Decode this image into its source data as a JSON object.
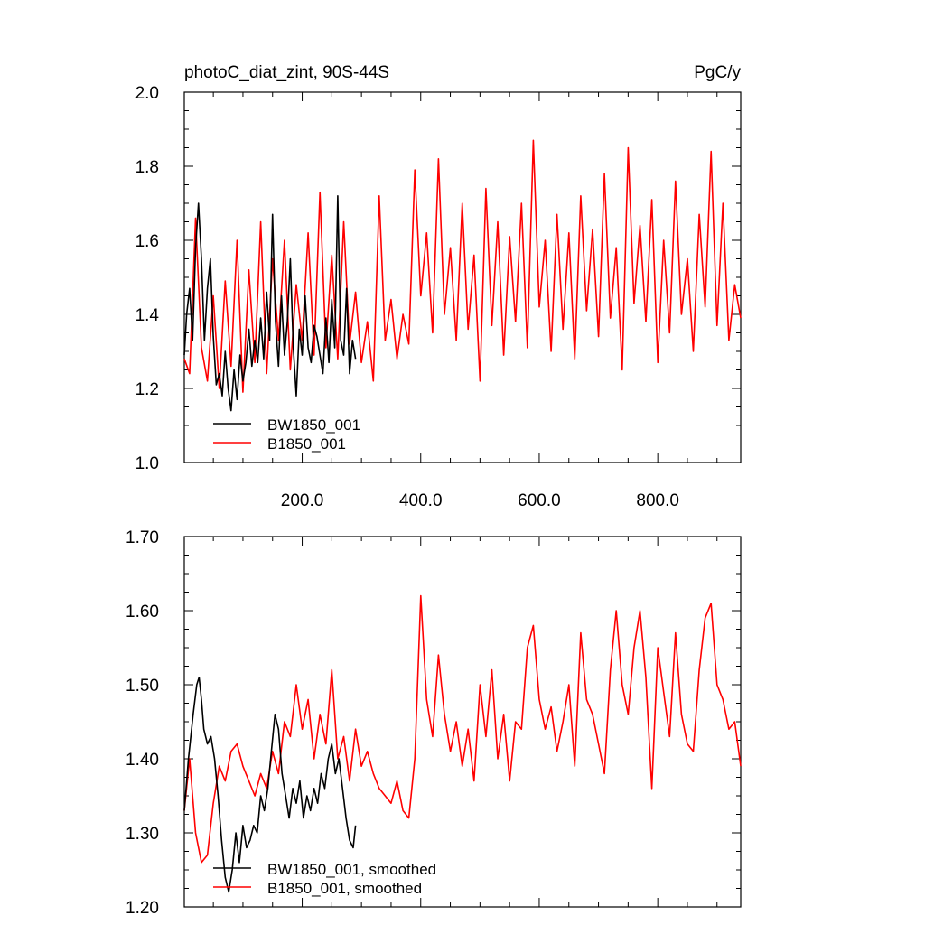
{
  "chart_data": [
    {
      "type": "line",
      "title": "photoC_diat_zint, 90S-44S",
      "units": "PgC/y",
      "xlim": [
        1,
        940
      ],
      "ylim": [
        1.0,
        2.0
      ],
      "x_ticks": [
        200,
        400,
        600,
        800
      ],
      "x_tick_labels": [
        "200.0",
        "400.0",
        "600.0",
        "800.0"
      ],
      "y_ticks": [
        1.0,
        1.2,
        1.4,
        1.6,
        1.8,
        2.0
      ],
      "y_tick_labels": [
        "1.0",
        "1.2",
        "1.4",
        "1.6",
        "1.8",
        "2.0"
      ],
      "legend_position": "bottom-left",
      "series": [
        {
          "name": "BW1850_001",
          "color": "#000000",
          "x": [
            1,
            5,
            10,
            15,
            20,
            25,
            30,
            35,
            40,
            45,
            50,
            55,
            60,
            65,
            70,
            75,
            80,
            85,
            90,
            95,
            100,
            105,
            110,
            115,
            120,
            125,
            130,
            135,
            140,
            145,
            150,
            155,
            160,
            165,
            170,
            175,
            180,
            185,
            190,
            195,
            200,
            205,
            210,
            215,
            220,
            225,
            230,
            235,
            240,
            245,
            250,
            255,
            260,
            265,
            270,
            275,
            280,
            285,
            290
          ],
          "y": [
            1.29,
            1.4,
            1.47,
            1.33,
            1.58,
            1.7,
            1.55,
            1.33,
            1.47,
            1.55,
            1.34,
            1.21,
            1.24,
            1.18,
            1.3,
            1.2,
            1.14,
            1.25,
            1.17,
            1.29,
            1.22,
            1.27,
            1.36,
            1.26,
            1.33,
            1.27,
            1.39,
            1.28,
            1.46,
            1.33,
            1.67,
            1.38,
            1.26,
            1.45,
            1.29,
            1.38,
            1.55,
            1.31,
            1.18,
            1.36,
            1.29,
            1.45,
            1.31,
            1.27,
            1.37,
            1.34,
            1.29,
            1.24,
            1.39,
            1.27,
            1.44,
            1.31,
            1.72,
            1.33,
            1.29,
            1.47,
            1.24,
            1.33,
            1.28
          ]
        },
        {
          "name": "B1850_001",
          "color": "#ff0000",
          "x": [
            1,
            10,
            20,
            30,
            40,
            50,
            60,
            70,
            80,
            90,
            100,
            110,
            120,
            130,
            140,
            150,
            160,
            170,
            180,
            190,
            200,
            210,
            220,
            230,
            240,
            250,
            260,
            270,
            280,
            290,
            300,
            310,
            320,
            330,
            340,
            350,
            360,
            370,
            380,
            390,
            400,
            410,
            420,
            430,
            440,
            450,
            460,
            470,
            480,
            490,
            500,
            510,
            520,
            530,
            540,
            550,
            560,
            570,
            580,
            590,
            600,
            610,
            620,
            630,
            640,
            650,
            660,
            670,
            680,
            690,
            700,
            710,
            720,
            730,
            740,
            750,
            760,
            770,
            780,
            790,
            800,
            810,
            820,
            830,
            840,
            850,
            860,
            870,
            880,
            890,
            900,
            910,
            920,
            930,
            940
          ],
          "y": [
            1.28,
            1.24,
            1.66,
            1.31,
            1.22,
            1.45,
            1.2,
            1.49,
            1.26,
            1.6,
            1.19,
            1.52,
            1.27,
            1.65,
            1.24,
            1.55,
            1.33,
            1.6,
            1.25,
            1.48,
            1.33,
            1.62,
            1.29,
            1.73,
            1.31,
            1.56,
            1.28,
            1.65,
            1.32,
            1.46,
            1.27,
            1.38,
            1.22,
            1.72,
            1.33,
            1.44,
            1.28,
            1.4,
            1.32,
            1.79,
            1.45,
            1.62,
            1.35,
            1.82,
            1.4,
            1.58,
            1.33,
            1.7,
            1.36,
            1.56,
            1.22,
            1.74,
            1.37,
            1.65,
            1.29,
            1.61,
            1.38,
            1.7,
            1.31,
            1.87,
            1.42,
            1.6,
            1.3,
            1.67,
            1.36,
            1.62,
            1.28,
            1.72,
            1.41,
            1.63,
            1.34,
            1.78,
            1.39,
            1.58,
            1.25,
            1.85,
            1.43,
            1.64,
            1.38,
            1.71,
            1.27,
            1.6,
            1.35,
            1.76,
            1.4,
            1.55,
            1.3,
            1.67,
            1.42,
            1.84,
            1.37,
            1.7,
            1.33,
            1.48,
            1.39
          ]
        }
      ]
    },
    {
      "type": "line",
      "title": "",
      "xlim": [
        1,
        940
      ],
      "ylim": [
        1.2,
        1.7
      ],
      "x_ticks": [
        200,
        400,
        600,
        800
      ],
      "x_tick_labels": [],
      "y_ticks": [
        1.2,
        1.3,
        1.4,
        1.5,
        1.6,
        1.7
      ],
      "y_tick_labels": [
        "1.20",
        "1.30",
        "1.40",
        "1.50",
        "1.60",
        "1.70"
      ],
      "legend_position": "bottom-left",
      "series": [
        {
          "name": "BW1850_001, smoothed",
          "color": "#000000",
          "x": [
            1,
            8,
            16,
            22,
            26,
            30,
            34,
            40,
            46,
            52,
            58,
            64,
            70,
            76,
            82,
            88,
            94,
            100,
            106,
            112,
            118,
            124,
            130,
            136,
            142,
            148,
            154,
            160,
            166,
            172,
            178,
            184,
            190,
            196,
            202,
            208,
            214,
            220,
            226,
            232,
            238,
            244,
            250,
            256,
            262,
            268,
            274,
            280,
            286,
            290
          ],
          "y": [
            1.33,
            1.4,
            1.46,
            1.5,
            1.51,
            1.48,
            1.44,
            1.42,
            1.43,
            1.4,
            1.35,
            1.29,
            1.24,
            1.22,
            1.25,
            1.3,
            1.26,
            1.31,
            1.28,
            1.29,
            1.31,
            1.3,
            1.35,
            1.33,
            1.36,
            1.41,
            1.46,
            1.44,
            1.38,
            1.35,
            1.32,
            1.36,
            1.34,
            1.37,
            1.32,
            1.35,
            1.33,
            1.36,
            1.34,
            1.38,
            1.36,
            1.4,
            1.42,
            1.38,
            1.4,
            1.36,
            1.32,
            1.29,
            1.28,
            1.31
          ]
        },
        {
          "name": "B1850_001, smoothed",
          "color": "#ff0000",
          "x": [
            1,
            10,
            20,
            30,
            40,
            50,
            60,
            70,
            80,
            90,
            100,
            110,
            120,
            130,
            140,
            150,
            160,
            170,
            180,
            190,
            200,
            210,
            220,
            230,
            240,
            250,
            260,
            270,
            280,
            290,
            300,
            310,
            320,
            330,
            340,
            350,
            360,
            370,
            380,
            390,
            400,
            410,
            420,
            430,
            440,
            450,
            460,
            470,
            480,
            490,
            500,
            510,
            520,
            530,
            540,
            550,
            560,
            570,
            580,
            590,
            600,
            610,
            620,
            630,
            640,
            650,
            660,
            670,
            680,
            690,
            700,
            710,
            720,
            730,
            740,
            750,
            760,
            770,
            780,
            790,
            800,
            810,
            820,
            830,
            840,
            850,
            860,
            870,
            880,
            890,
            900,
            910,
            920,
            930,
            940
          ],
          "y": [
            1.33,
            1.4,
            1.3,
            1.26,
            1.27,
            1.34,
            1.39,
            1.37,
            1.41,
            1.42,
            1.39,
            1.37,
            1.35,
            1.38,
            1.36,
            1.41,
            1.38,
            1.45,
            1.43,
            1.5,
            1.44,
            1.48,
            1.4,
            1.46,
            1.42,
            1.52,
            1.4,
            1.43,
            1.37,
            1.44,
            1.39,
            1.41,
            1.38,
            1.36,
            1.35,
            1.34,
            1.37,
            1.33,
            1.32,
            1.4,
            1.62,
            1.48,
            1.43,
            1.54,
            1.46,
            1.41,
            1.45,
            1.39,
            1.44,
            1.37,
            1.5,
            1.43,
            1.52,
            1.4,
            1.46,
            1.37,
            1.45,
            1.44,
            1.55,
            1.58,
            1.48,
            1.44,
            1.47,
            1.41,
            1.45,
            1.5,
            1.39,
            1.57,
            1.48,
            1.46,
            1.42,
            1.38,
            1.52,
            1.6,
            1.5,
            1.46,
            1.55,
            1.6,
            1.51,
            1.36,
            1.55,
            1.49,
            1.43,
            1.57,
            1.46,
            1.42,
            1.41,
            1.52,
            1.59,
            1.61,
            1.5,
            1.48,
            1.44,
            1.45,
            1.39
          ]
        }
      ]
    }
  ]
}
